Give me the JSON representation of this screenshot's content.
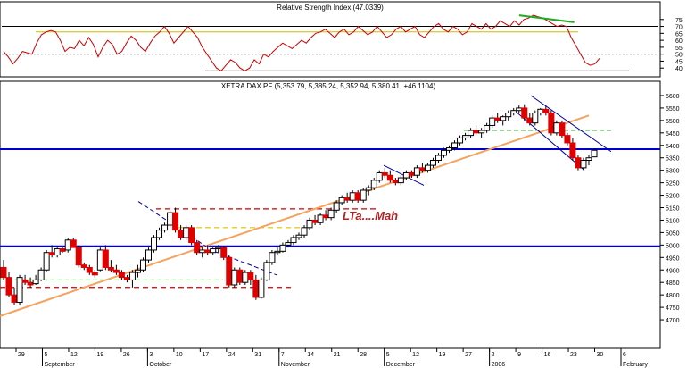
{
  "chart_data": [
    {
      "type": "line",
      "title": "Relative Strength Index (47.0339)",
      "y_ticks": [
        40,
        45,
        50,
        55,
        60,
        65,
        70,
        75
      ],
      "ylim": [
        35,
        80
      ],
      "reference_lines": {
        "yellow": 66,
        "dotted": 50,
        "upper": 70,
        "lower": 38
      },
      "series": [
        {
          "values": [
            52,
            48,
            43,
            47,
            52,
            51,
            50,
            58,
            64,
            66,
            67,
            66,
            60,
            52,
            55,
            54,
            60,
            56,
            62,
            57,
            48,
            55,
            60,
            57,
            50,
            52,
            58,
            63,
            60,
            55,
            52,
            58,
            63,
            66,
            70,
            65,
            58,
            62,
            66,
            70,
            66,
            62,
            55,
            50,
            45,
            40,
            38,
            42,
            46,
            44,
            40,
            38,
            40,
            46,
            43,
            50,
            48,
            52,
            55,
            58,
            56,
            54,
            57,
            60,
            58,
            62,
            65,
            66,
            68,
            65,
            62,
            66,
            68,
            64,
            66,
            70,
            67,
            64,
            66,
            70,
            66,
            62,
            64,
            68,
            70,
            66,
            68,
            70,
            64,
            62,
            66,
            70,
            72,
            68,
            66,
            70,
            68,
            64,
            66,
            72,
            70,
            68,
            72,
            68,
            70,
            74,
            72,
            70,
            74,
            71,
            75,
            76,
            78,
            77,
            76,
            74,
            72,
            70,
            71,
            70,
            62,
            56,
            50,
            44,
            42,
            43,
            47
          ]
        }
      ],
      "green_trendline": {
        "from": [
          109,
          78
        ],
        "to": [
          118,
          73
        ]
      }
    },
    {
      "type": "candlestick",
      "title": "XETRA DAX PF (5,353.79, 5,385.24, 5,352.94, 5,380.41, +46.1104)",
      "annotation": "LTa....Mah",
      "y_ticks": [
        4700,
        4750,
        4800,
        4850,
        4900,
        4950,
        5000,
        5050,
        5100,
        5150,
        5200,
        5250,
        5300,
        5350,
        5400,
        5450,
        5500,
        5550,
        5600
      ],
      "ylim": [
        4650,
        5625
      ],
      "x_ticks": [
        "29",
        "5",
        "12",
        "19",
        "26",
        "3",
        "10",
        "17",
        "24",
        "31",
        "7",
        "14",
        "21",
        "28",
        "5",
        "12",
        "19",
        "27",
        "2",
        "9",
        "16",
        "23",
        "30",
        "6"
      ],
      "month_labels": [
        "September",
        "October",
        "November",
        "December",
        "2006",
        "February"
      ],
      "horizontal_lines": {
        "blue": [
          4995,
          5385
        ],
        "red_dashed": [
          4830,
          5145
        ],
        "yellow_dashed": [
          5070
        ],
        "green_dashed": [
          4860,
          5460
        ]
      },
      "trendline_orange": {
        "from": [
          0,
          4715
        ],
        "to": [
          130,
          5520
        ]
      },
      "candles": [
        [
          4910,
          4940,
          4860,
          4870
        ],
        [
          4870,
          4890,
          4790,
          4800
        ],
        [
          4800,
          4830,
          4760,
          4770
        ],
        [
          4770,
          4880,
          4760,
          4870
        ],
        [
          4860,
          4880,
          4840,
          4850
        ],
        [
          4850,
          4870,
          4830,
          4840
        ],
        [
          4845,
          4880,
          4840,
          4860
        ],
        [
          4860,
          4910,
          4855,
          4900
        ],
        [
          4900,
          4980,
          4895,
          4970
        ],
        [
          4970,
          5000,
          4950,
          4960
        ],
        [
          4960,
          4990,
          4950,
          4985
        ],
        [
          4985,
          4990,
          4970,
          4975
        ],
        [
          4980,
          5030,
          4970,
          5020
        ],
        [
          5020,
          5030,
          4990,
          4990
        ],
        [
          4990,
          5000,
          4910,
          4920
        ],
        [
          4920,
          4930,
          4900,
          4910
        ],
        [
          4910,
          4920,
          4880,
          4890
        ],
        [
          4890,
          4900,
          4870,
          4880
        ],
        [
          4900,
          4990,
          4895,
          4980
        ],
        [
          4980,
          5000,
          4900,
          4910
        ],
        [
          4910,
          4940,
          4890,
          4900
        ],
        [
          4900,
          4920,
          4880,
          4890
        ],
        [
          4890,
          4900,
          4860,
          4870
        ],
        [
          4870,
          4880,
          4850,
          4860
        ],
        [
          4860,
          4900,
          4830,
          4890
        ],
        [
          4890,
          4920,
          4870,
          4900
        ],
        [
          4900,
          4950,
          4890,
          4940
        ],
        [
          4940,
          4990,
          4930,
          4980
        ],
        [
          4980,
          5040,
          4970,
          5030
        ],
        [
          5030,
          5070,
          5020,
          5060
        ],
        [
          5060,
          5090,
          5050,
          5080
        ],
        [
          5080,
          5140,
          5070,
          5130
        ],
        [
          5130,
          5150,
          5050,
          5060
        ],
        [
          5060,
          5080,
          5020,
          5030
        ],
        [
          5030,
          5080,
          5020,
          5070
        ],
        [
          5070,
          5080,
          5000,
          5010
        ],
        [
          5010,
          5020,
          4960,
          4970
        ],
        [
          4970,
          4990,
          4950,
          4980
        ],
        [
          4980,
          5000,
          4960,
          4970
        ],
        [
          4970,
          4990,
          4960,
          4985
        ],
        [
          4985,
          5000,
          4970,
          4990
        ],
        [
          4990,
          4995,
          4940,
          4950
        ],
        [
          4950,
          4960,
          4830,
          4840
        ],
        [
          4840,
          4910,
          4830,
          4900
        ],
        [
          4900,
          4910,
          4840,
          4850
        ],
        [
          4850,
          4900,
          4840,
          4890
        ],
        [
          4890,
          4900,
          4840,
          4860
        ],
        [
          4860,
          4880,
          4780,
          4790
        ],
        [
          4790,
          4870,
          4785,
          4860
        ],
        [
          4860,
          4940,
          4855,
          4930
        ],
        [
          4930,
          4980,
          4920,
          4970
        ],
        [
          4970,
          4990,
          4960,
          4975
        ],
        [
          4975,
          5010,
          4970,
          5000
        ],
        [
          5000,
          5020,
          4990,
          5010
        ],
        [
          5010,
          5040,
          5000,
          5030
        ],
        [
          5030,
          5050,
          5020,
          5040
        ],
        [
          5040,
          5080,
          5030,
          5070
        ],
        [
          5070,
          5110,
          5060,
          5100
        ],
        [
          5100,
          5120,
          5080,
          5090
        ],
        [
          5090,
          5130,
          5080,
          5120
        ],
        [
          5120,
          5140,
          5100,
          5110
        ],
        [
          5110,
          5150,
          5100,
          5140
        ],
        [
          5140,
          5180,
          5130,
          5170
        ],
        [
          5170,
          5200,
          5160,
          5190
        ],
        [
          5190,
          5210,
          5170,
          5180
        ],
        [
          5180,
          5220,
          5170,
          5210
        ],
        [
          5210,
          5220,
          5170,
          5180
        ],
        [
          5180,
          5230,
          5170,
          5220
        ],
        [
          5220,
          5240,
          5200,
          5230
        ],
        [
          5230,
          5270,
          5220,
          5260
        ],
        [
          5260,
          5300,
          5250,
          5290
        ],
        [
          5290,
          5310,
          5270,
          5280
        ],
        [
          5280,
          5300,
          5250,
          5260
        ],
        [
          5260,
          5270,
          5240,
          5250
        ],
        [
          5250,
          5280,
          5240,
          5270
        ],
        [
          5270,
          5300,
          5260,
          5290
        ],
        [
          5290,
          5300,
          5270,
          5280
        ],
        [
          5280,
          5320,
          5270,
          5310
        ],
        [
          5310,
          5330,
          5290,
          5300
        ],
        [
          5300,
          5330,
          5290,
          5320
        ],
        [
          5320,
          5350,
          5310,
          5340
        ],
        [
          5340,
          5370,
          5330,
          5360
        ],
        [
          5360,
          5390,
          5350,
          5380
        ],
        [
          5380,
          5400,
          5370,
          5390
        ],
        [
          5390,
          5420,
          5380,
          5410
        ],
        [
          5410,
          5440,
          5400,
          5430
        ],
        [
          5430,
          5450,
          5420,
          5440
        ],
        [
          5440,
          5470,
          5430,
          5460
        ],
        [
          5460,
          5480,
          5440,
          5450
        ],
        [
          5450,
          5470,
          5430,
          5460
        ],
        [
          5460,
          5490,
          5450,
          5480
        ],
        [
          5480,
          5520,
          5470,
          5510
        ],
        [
          5510,
          5530,
          5490,
          5500
        ],
        [
          5500,
          5520,
          5480,
          5515
        ],
        [
          5515,
          5540,
          5500,
          5530
        ],
        [
          5530,
          5550,
          5520,
          5540
        ],
        [
          5540,
          5560,
          5530,
          5550
        ],
        [
          5550,
          5565,
          5500,
          5510
        ],
        [
          5510,
          5530,
          5480,
          5490
        ],
        [
          5490,
          5540,
          5480,
          5530
        ],
        [
          5530,
          5550,
          5520,
          5545
        ],
        [
          5545,
          5560,
          5520,
          5530
        ],
        [
          5530,
          5540,
          5440,
          5450
        ],
        [
          5450,
          5500,
          5440,
          5490
        ],
        [
          5490,
          5500,
          5430,
          5440
        ],
        [
          5440,
          5450,
          5400,
          5410
        ],
        [
          5410,
          5430,
          5340,
          5350
        ],
        [
          5350,
          5360,
          5300,
          5310
        ],
        [
          5310,
          5350,
          5300,
          5340
        ],
        [
          5340,
          5360,
          5320,
          5350
        ],
        [
          5353.79,
          5385.24,
          5352.94,
          5380.41
        ]
      ]
    }
  ]
}
